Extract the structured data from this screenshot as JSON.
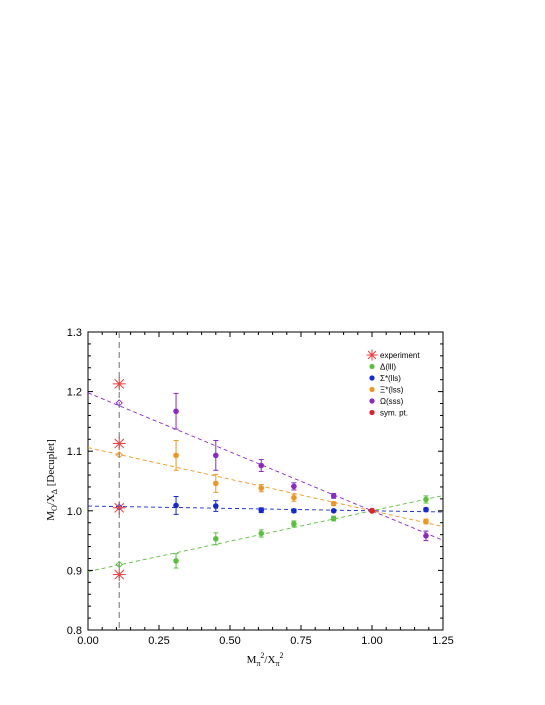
{
  "chart_data": {
    "type": "scatter",
    "xlabel": "M_π²/X_π²",
    "ylabel": "M_O/X_Δ [Decuplet]",
    "xlim": [
      0.0,
      1.25
    ],
    "ylim": [
      0.8,
      1.3
    ],
    "x_ticks": [
      "0.00",
      "0.25",
      "0.50",
      "0.75",
      "1.00",
      "1.25"
    ],
    "y_ticks": [
      "0.8",
      "0.9",
      "1.0",
      "1.1",
      "1.2",
      "1.3"
    ],
    "physical_point_x": 0.11,
    "legend_position": "top-right",
    "legend": {
      "experiment": "experiment",
      "delta": "Δ(lll)",
      "sigma": "Σ*(lls)",
      "xi": "Ξ*(lss)",
      "omega": "Ω(sss)",
      "sym": "sym. pt."
    },
    "series": [
      {
        "key": "delta",
        "color": "#5ac13c",
        "x": [
          0.31,
          0.45,
          0.61,
          0.725,
          0.865,
          1.19
        ],
        "y": [
          0.916,
          0.953,
          0.962,
          0.978,
          0.987,
          1.019
        ],
        "err": [
          0.012,
          0.01,
          0.006,
          0.005,
          0.004,
          0.006
        ],
        "fit": [
          0.898,
          1.0
        ],
        "extrapolated": 0.91
      },
      {
        "key": "sigma",
        "color": "#1428d8",
        "x": [
          0.31,
          0.45,
          0.61,
          0.725,
          0.865,
          1.19
        ],
        "y": [
          1.009,
          1.008,
          1.001,
          1.0,
          1.0,
          1.002
        ],
        "err": [
          0.015,
          0.009,
          0.004,
          0.003,
          0.002,
          0.003
        ],
        "fit": [
          1.008,
          1.0
        ],
        "extrapolated": 1.006
      },
      {
        "key": "xi",
        "color": "#f0961e",
        "x": [
          0.31,
          0.45,
          0.61,
          0.725,
          0.865,
          1.19
        ],
        "y": [
          1.093,
          1.046,
          1.038,
          1.022,
          1.012,
          0.982
        ],
        "err": [
          0.025,
          0.015,
          0.006,
          0.006,
          0.003,
          0.004
        ],
        "fit": [
          1.106,
          1.0
        ],
        "extrapolated": 1.094
      },
      {
        "key": "omega",
        "color": "#8c28c8",
        "x": [
          0.31,
          0.45,
          0.61,
          0.725,
          0.865,
          1.19
        ],
        "y": [
          1.167,
          1.093,
          1.076,
          1.041,
          1.025,
          0.958
        ],
        "err": [
          0.03,
          0.025,
          0.01,
          0.006,
          0.004,
          0.008
        ],
        "fit": [
          1.198,
          1.0
        ],
        "extrapolated": 1.181
      }
    ],
    "sym_point": {
      "x": 1.0,
      "y": 1.0,
      "color": "#e61e28"
    },
    "experiment": {
      "x": 0.11,
      "color": "#f03c3c",
      "y": [
        1.213,
        1.113,
        1.005,
        0.893
      ]
    }
  }
}
